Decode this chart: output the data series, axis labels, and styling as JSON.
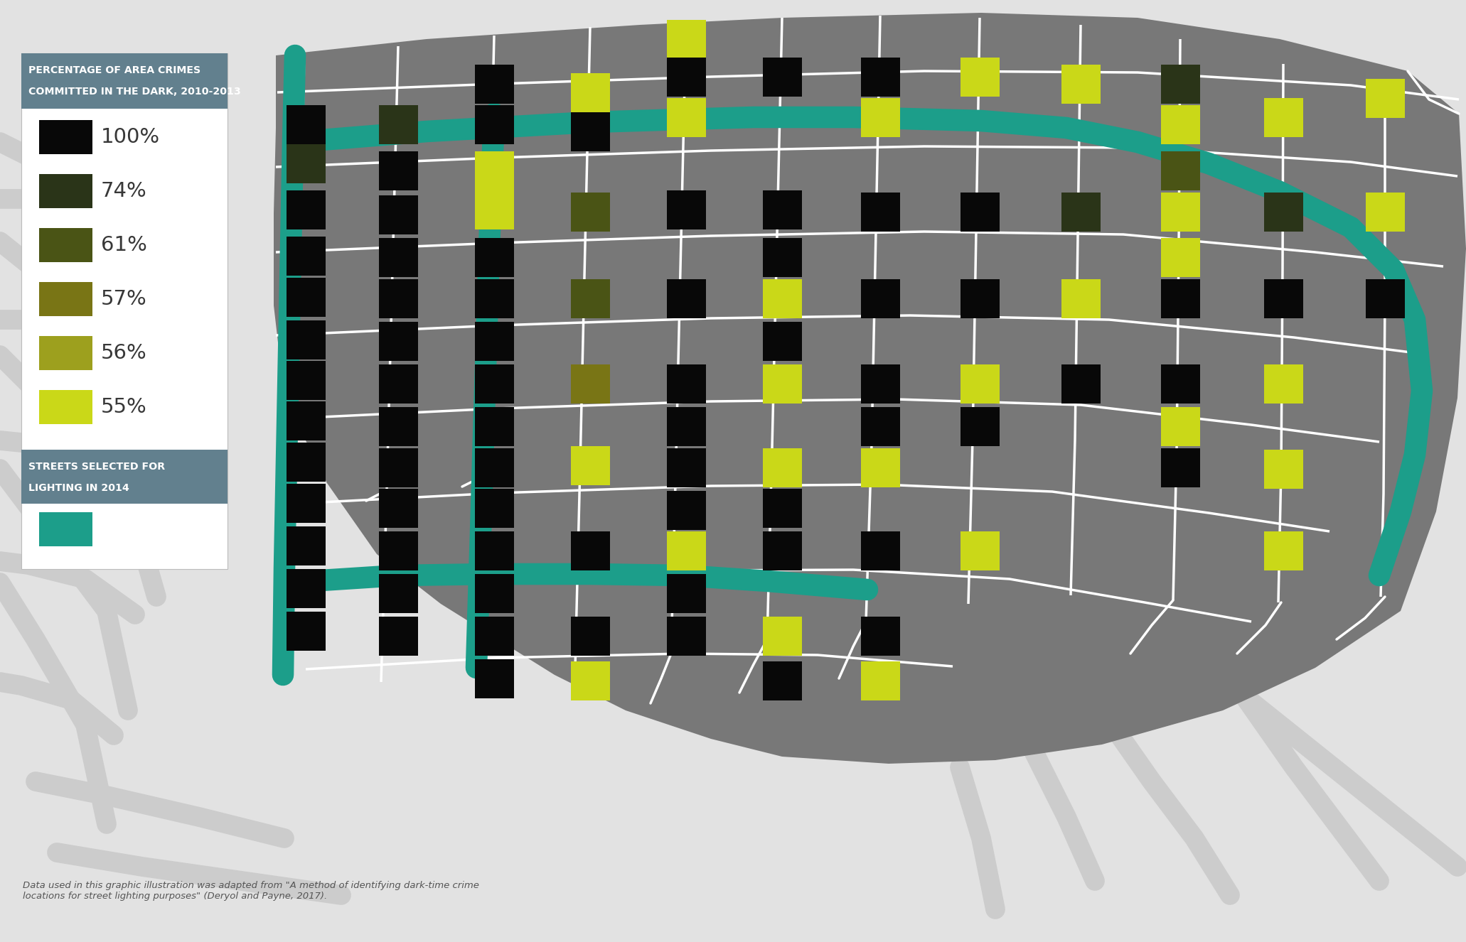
{
  "background_color": "#e2e2e2",
  "map_bg_color": "#787878",
  "legend_header_color": "#62808e",
  "teal_color": "#1c9e8a",
  "street_color": "#ffffff",
  "road_outline_color": "#cccccc",
  "legend_colors": [
    "#080808",
    "#2a3418",
    "#4a5415",
    "#797515",
    "#9da01e",
    "#cad818"
  ],
  "legend_labels": [
    "100%",
    "74%",
    "61%",
    "57%",
    "56%",
    "55%"
  ],
  "legend_title1": "PERCENTAGE OF AREA CRIMES",
  "legend_title2": "COMMITTED IN THE DARK, 2010-2013",
  "legend_title3": "STREETS SELECTED FOR",
  "legend_title4": "LIGHTING IN 2014",
  "caption": "Data used in this graphic illustration was adapted from \"A method of identifying dark-time crime\nlocations for street lighting purposes\" (Deryol and Payne, 2017).",
  "figsize": [
    20.62,
    13.26
  ],
  "dpi": 100
}
